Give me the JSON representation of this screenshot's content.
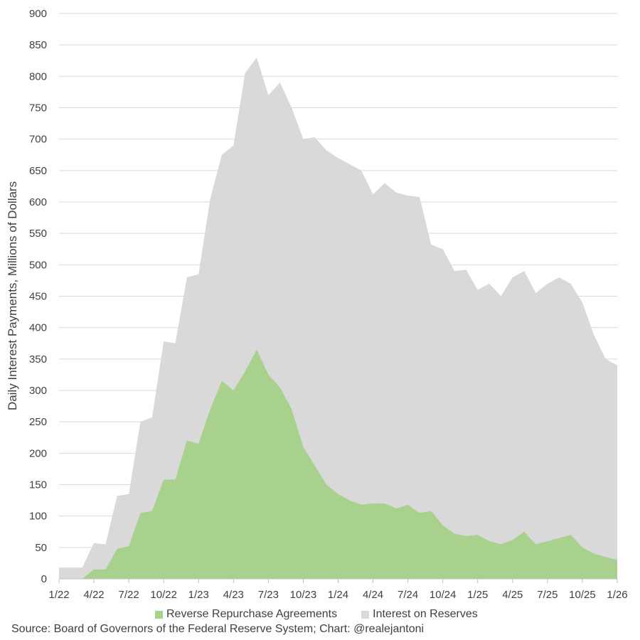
{
  "chart_data": {
    "type": "area",
    "ylabel": "Daily Interest Payments, Millions of Dollars",
    "ylim": [
      0,
      900
    ],
    "yticks": [
      0,
      50,
      100,
      150,
      200,
      250,
      300,
      350,
      400,
      450,
      500,
      550,
      600,
      650,
      700,
      750,
      800,
      850,
      900
    ],
    "xlim": [
      "2022-01",
      "2026-01"
    ],
    "xtick_labels": [
      "1/22",
      "4/22",
      "7/22",
      "10/22",
      "1/23",
      "4/23",
      "7/23",
      "10/23",
      "1/24",
      "4/24",
      "7/24",
      "10/24",
      "1/25",
      "4/25",
      "7/25",
      "10/25",
      "1/26"
    ],
    "x": [
      "2022-01",
      "2022-02",
      "2022-03",
      "2022-04",
      "2022-05",
      "2022-06",
      "2022-07",
      "2022-08",
      "2022-09",
      "2022-10",
      "2022-11",
      "2022-12",
      "2023-01",
      "2023-02",
      "2023-03",
      "2023-04",
      "2023-05",
      "2023-06",
      "2023-07",
      "2023-08",
      "2023-09",
      "2023-10",
      "2023-11",
      "2023-12",
      "2024-01",
      "2024-02",
      "2024-03",
      "2024-04",
      "2024-05",
      "2024-06",
      "2024-07",
      "2024-08",
      "2024-09",
      "2024-10",
      "2024-11",
      "2024-12",
      "2025-01",
      "2025-02",
      "2025-03",
      "2025-04",
      "2025-05",
      "2025-06",
      "2025-07",
      "2025-08",
      "2025-09",
      "2025-10",
      "2025-11",
      "2025-12",
      "2026-01"
    ],
    "series": [
      {
        "name": "Interest on Reserves",
        "color": "#d9d9d9",
        "values": [
          18,
          18,
          18,
          57,
          55,
          132,
          135,
          250,
          257,
          378,
          375,
          480,
          485,
          605,
          675,
          690,
          805,
          830,
          770,
          790,
          750,
          700,
          703,
          682,
          670,
          660,
          650,
          612,
          630,
          615,
          610,
          608,
          532,
          525,
          490,
          492,
          460,
          470,
          450,
          480,
          490,
          455,
          470,
          480,
          470,
          440,
          388,
          350,
          340
        ]
      },
      {
        "name": "Reverse Repurchase Agreements",
        "color": "#a9d18e",
        "values": [
          0,
          0,
          0,
          15,
          15,
          48,
          52,
          105,
          108,
          158,
          158,
          220,
          215,
          270,
          315,
          300,
          330,
          365,
          325,
          305,
          270,
          210,
          180,
          150,
          135,
          125,
          118,
          120,
          120,
          112,
          118,
          105,
          108,
          85,
          72,
          68,
          70,
          60,
          55,
          62,
          75,
          55,
          60,
          65,
          70,
          50,
          40,
          35,
          30
        ]
      }
    ],
    "legend": [
      "Reverse Repurchase Agreements",
      "Interest on Reserves"
    ],
    "legend_position": "bottom",
    "grid": "horizontal"
  },
  "source": "Source: Board of Governors of the Federal Reserve System; Chart: @realejantoni"
}
